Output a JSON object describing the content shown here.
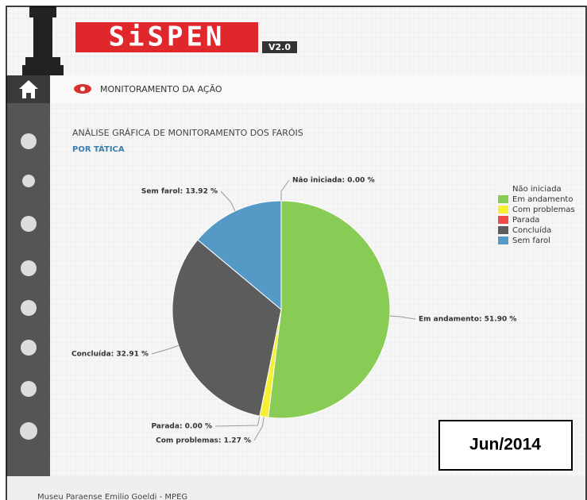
{
  "header": {
    "logo": "SiSPEN",
    "version": "V2.0"
  },
  "section": {
    "title": "MONITORAMENTO DA AÇÃO"
  },
  "chart_data": {
    "type": "pie",
    "title": "ANÁLISE GRÁFICA DE MONITORAMENTO DOS FARÓIS",
    "subtitle": "POR TÁTICA",
    "categories": [
      "Não iniciada",
      "Em andamento",
      "Com problemas",
      "Parada",
      "Concluída",
      "Sem farol"
    ],
    "values": [
      0,
      51.9,
      1.27,
      0,
      32.91,
      13.92
    ],
    "value_labels": [
      "Não iniciada: 0.00 %",
      "Em andamento: 51.90 %",
      "Com problemas: 1.27 %",
      "Parada: 0.00 %",
      "Concluída: 32.91 %",
      "Sem farol: 13.92 %"
    ],
    "colors": [
      "#f4f4f4",
      "#88cc55",
      "#f5f032",
      "#f04a4a",
      "#5c5c5c",
      "#5599c6"
    ],
    "legend": "upper right"
  },
  "annotation": "Jun/2014",
  "footer": "Museu Paraense Emilio Goeldi - MPEG"
}
